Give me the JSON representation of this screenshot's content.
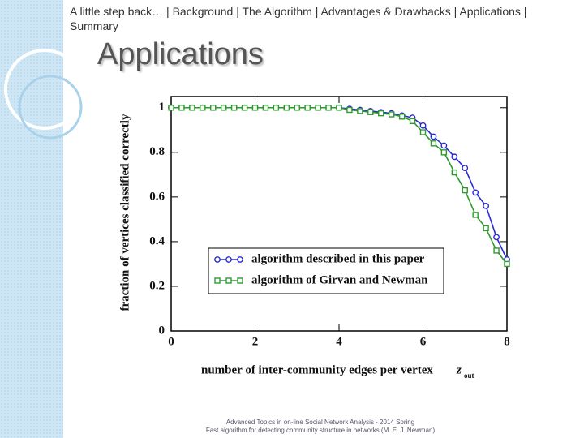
{
  "nav": "A little step back… | Background | The Algorithm | Advantages & Drawbacks | Applications | Summary",
  "title": "Applications",
  "footer": [
    "Advanced Topics in on-line Social Network Analysis - 2014 Spring",
    "Fast algorithm for detecting community structure in networks (M. E. J. Newman)"
  ],
  "chart_data": {
    "type": "line",
    "ylabel": "fraction of vertices classified correctly",
    "xlabel": "number of inter-community edges per vertex",
    "xlabel_var": "z",
    "xlabel_sub": "out",
    "x": [
      0,
      0.25,
      0.5,
      0.75,
      1,
      1.25,
      1.5,
      1.75,
      2,
      2.25,
      2.5,
      2.75,
      3,
      3.25,
      3.5,
      3.75,
      4,
      4.25,
      4.5,
      4.75,
      5,
      5.25,
      5.5,
      5.75,
      6,
      6.25,
      6.5,
      6.75,
      7,
      7.25,
      7.5,
      7.75,
      8
    ],
    "series": [
      {
        "name": "algorithm described in this paper",
        "color": "#2b2bd6",
        "marker": "circle",
        "values": [
          1,
          1,
          1,
          1,
          1,
          1,
          1,
          1,
          1,
          1,
          1,
          1,
          1,
          1,
          1,
          1,
          1,
          0.995,
          0.99,
          0.985,
          0.98,
          0.975,
          0.965,
          0.955,
          0.92,
          0.87,
          0.83,
          0.78,
          0.73,
          0.62,
          0.56,
          0.42,
          0.32
        ]
      },
      {
        "name": "algorithm of Girvan and Newman",
        "color": "#2e9a2e",
        "marker": "square",
        "values": [
          1,
          1,
          1,
          1,
          1,
          1,
          1,
          1,
          1,
          1,
          1,
          1,
          1,
          1,
          1,
          1,
          1,
          0.99,
          0.985,
          0.98,
          0.975,
          0.97,
          0.96,
          0.94,
          0.89,
          0.84,
          0.8,
          0.71,
          0.63,
          0.52,
          0.46,
          0.36,
          0.3
        ]
      }
    ],
    "xlim": [
      0,
      8
    ],
    "xticks": [
      0,
      2,
      4,
      6,
      8
    ],
    "ylim": [
      0,
      1.05
    ],
    "yticks": [
      0,
      0.2,
      0.4,
      0.6,
      0.8,
      1
    ],
    "legend": "lower center"
  }
}
